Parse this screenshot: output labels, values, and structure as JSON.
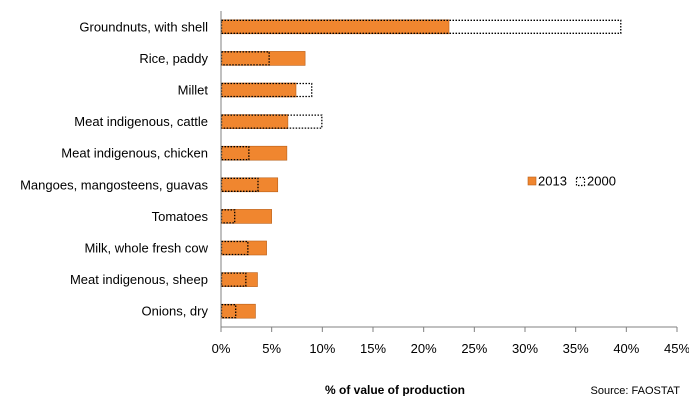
{
  "chart_data": {
    "type": "bar",
    "orientation": "horizontal",
    "categories": [
      "Groundnuts, with shell",
      "Rice, paddy",
      "Millet",
      "Meat indigenous, cattle",
      "Meat indigenous, chicken",
      "Mangoes, mangosteens, guavas",
      "Tomatoes",
      "Milk, whole fresh cow",
      "Meat indigenous, sheep",
      "Onions, dry"
    ],
    "series": [
      {
        "name": "2013",
        "values": [
          22.5,
          8.3,
          7.4,
          6.6,
          6.5,
          5.6,
          5.0,
          4.5,
          3.6,
          3.4
        ],
        "style": "solid-fill",
        "color": "#f0862f"
      },
      {
        "name": "2000",
        "values": [
          39.5,
          4.8,
          9.0,
          10.0,
          2.8,
          3.7,
          1.4,
          2.7,
          2.5,
          1.5
        ],
        "style": "dotted-outline",
        "color": "#000000"
      }
    ],
    "xlabel": "% of value of production",
    "xlim": [
      0,
      45
    ],
    "xticks": [
      0,
      5,
      10,
      15,
      20,
      25,
      30,
      35,
      40,
      45
    ],
    "xtick_labels": [
      "0%",
      "5%",
      "10%",
      "15%",
      "20%",
      "25%",
      "30%",
      "35%",
      "40%",
      "45%"
    ],
    "grid": false,
    "legend_position": "right",
    "source": "Source: FAOSTAT"
  }
}
